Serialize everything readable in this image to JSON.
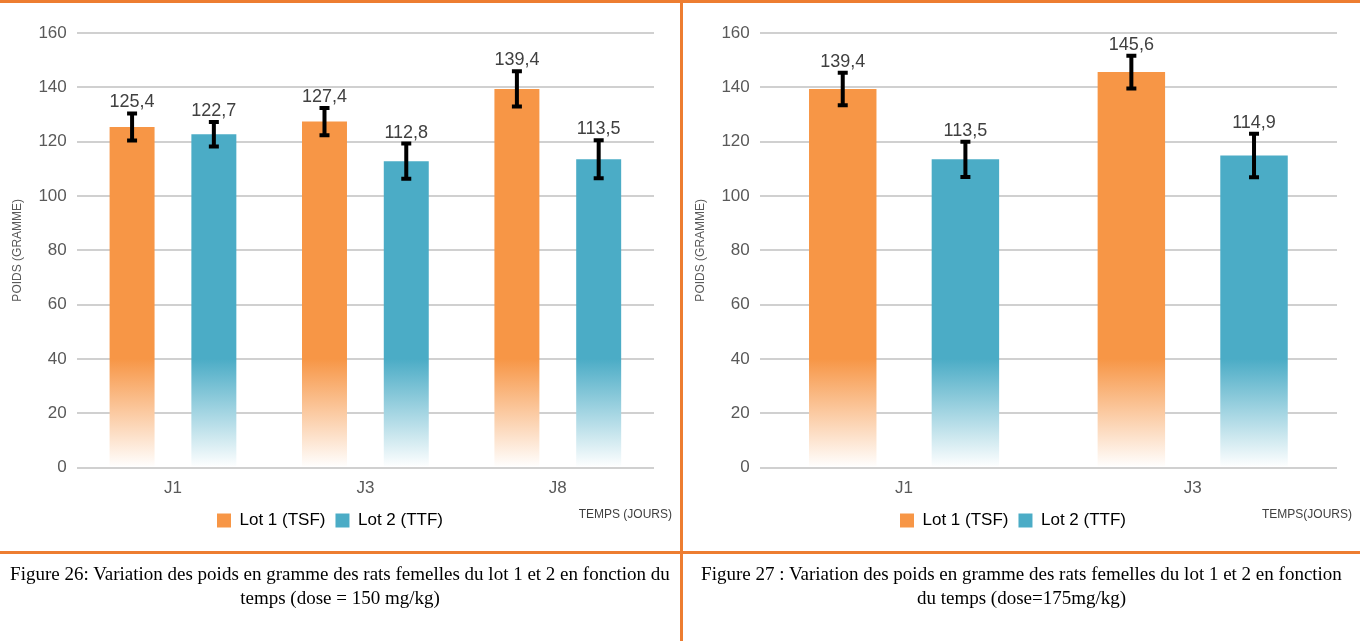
{
  "chart_data": [
    {
      "type": "bar",
      "categories": [
        "J1",
        "J3",
        "J8"
      ],
      "ylabel": "POIDS (GRAMME)",
      "xlabel": "TEMPS (JOURS)",
      "series": [
        {
          "name": "Lot 1 (TSF)",
          "color": "#f79646",
          "values": [
            125.4,
            127.4,
            139.4
          ],
          "errors": [
            5,
            5,
            6.5
          ],
          "value_labels": [
            "125,4",
            "127,4",
            "139,4"
          ]
        },
        {
          "name": "Lot 2 (TTF)",
          "color": "#4bacc6",
          "values": [
            122.7,
            112.8,
            113.5
          ],
          "errors": [
            4.5,
            6.5,
            7
          ],
          "value_labels": [
            "122,7",
            "112,8",
            "113,5"
          ]
        }
      ],
      "ylim": [
        0,
        160
      ],
      "yticks": [
        0,
        20,
        40,
        60,
        80,
        100,
        120,
        140,
        160
      ],
      "grid": "y",
      "legend": "bottom",
      "annotations": [
        "Figure 26: Variation des poids en gramme des rats femelles du lot 1 et 2 en fonction du temps (dose = 150 mg/kg)"
      ]
    },
    {
      "type": "bar",
      "categories": [
        "J1",
        "J3"
      ],
      "ylabel": "POIDS (GRAMME)",
      "xlabel": "TEMPS(JOURS)",
      "series": [
        {
          "name": "Lot 1 (TSF)",
          "color": "#f79646",
          "values": [
            139.4,
            145.6
          ],
          "errors": [
            6,
            6
          ],
          "value_labels": [
            "139,4",
            "145,6"
          ]
        },
        {
          "name": "Lot 2 (TTF)",
          "color": "#4bacc6",
          "values": [
            113.5,
            114.9
          ],
          "errors": [
            6.5,
            8
          ],
          "value_labels": [
            "113,5",
            "114,9"
          ]
        }
      ],
      "ylim": [
        0,
        160
      ],
      "yticks": [
        0,
        20,
        40,
        60,
        80,
        100,
        120,
        140,
        160
      ],
      "grid": "y",
      "legend": "bottom",
      "annotations": [
        "Figure 27 : Variation des poids en gramme des rats femelles du lot 1 et 2 en fonction du temps (dose=175mg/kg)"
      ]
    }
  ]
}
